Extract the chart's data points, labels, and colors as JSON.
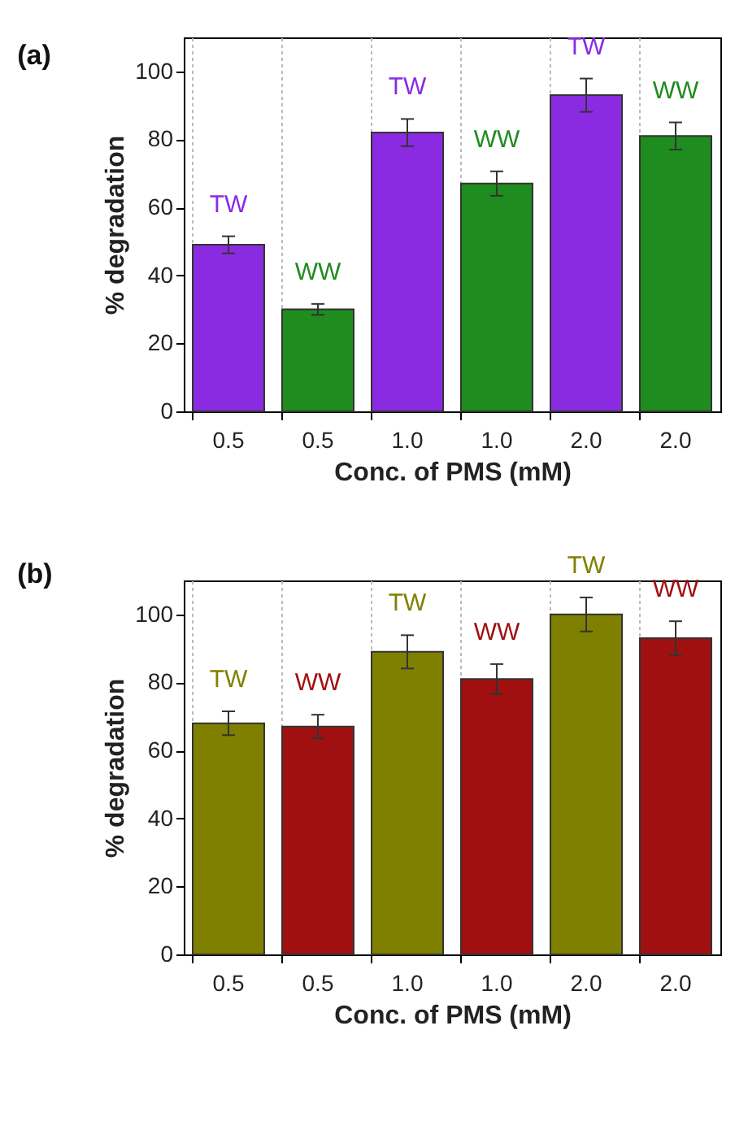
{
  "chart_data": [
    {
      "type": "bar",
      "title": "(a)",
      "xlabel": "Conc. of PMS (mM)",
      "ylabel": "% degradation",
      "categories": [
        "0.5",
        "0.5",
        "1.0",
        "1.0",
        "2.0",
        "2.0"
      ],
      "series": [
        {
          "name": "TW",
          "color": "#8a2be2",
          "values": [
            49,
            null,
            82,
            null,
            93,
            null
          ],
          "errors": [
            2.5,
            null,
            4,
            null,
            4.9,
            null
          ]
        },
        {
          "name": "WW",
          "color": "#1e8c1e",
          "values": [
            null,
            30,
            null,
            67,
            null,
            81
          ],
          "errors": [
            null,
            1.6,
            null,
            3.6,
            null,
            4
          ]
        }
      ],
      "ylim": [
        0,
        110
      ],
      "yticks": [
        0,
        20,
        40,
        60,
        80,
        100
      ],
      "grid": "x"
    },
    {
      "type": "bar",
      "title": "(b)",
      "xlabel": "Conc. of PMS (mM)",
      "ylabel": "% degradation",
      "categories": [
        "0.5",
        "0.5",
        "1.0",
        "1.0",
        "2.0",
        "2.0"
      ],
      "series": [
        {
          "name": "TW",
          "color": "#808000",
          "values": [
            68,
            null,
            89,
            null,
            100,
            null
          ],
          "errors": [
            3.5,
            null,
            4.9,
            null,
            5,
            null
          ]
        },
        {
          "name": "WW",
          "color": "#a01010",
          "values": [
            null,
            67,
            null,
            81,
            null,
            93
          ],
          "errors": [
            null,
            3.5,
            null,
            4.4,
            null,
            5
          ]
        }
      ],
      "ylim": [
        0,
        110
      ],
      "yticks": [
        0,
        20,
        40,
        60,
        80,
        100
      ],
      "grid": "x"
    }
  ]
}
